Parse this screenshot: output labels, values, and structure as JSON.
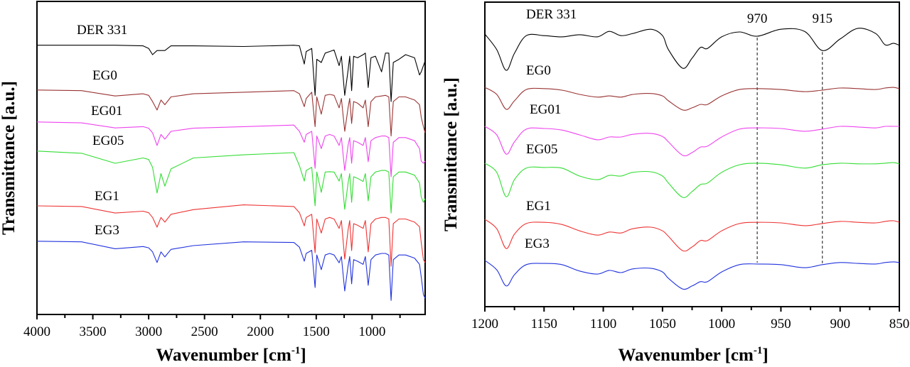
{
  "chart_data": [
    {
      "type": "line",
      "title": "",
      "xlabel": "Wavenumber [cm",
      "xlabel_sup": "-1",
      "xlabel_end": "]",
      "ylabel": "Transmittance [a.u.]",
      "xlim": [
        4000,
        525
      ],
      "ylim": [
        0,
        100
      ],
      "x_ticks": [
        4000,
        3500,
        3000,
        2500,
        2000,
        1500,
        1000
      ],
      "y_ticks_shown": false,
      "grid": false,
      "legend": "inline labels",
      "x": [
        4000,
        3600,
        3300,
        3050,
        3000,
        2965,
        2925,
        2890,
        2855,
        2800,
        2600,
        2150,
        1700,
        1650,
        1607,
        1590,
        1540,
        1510,
        1495,
        1455,
        1420,
        1380,
        1340,
        1295,
        1275,
        1245,
        1215,
        1200,
        1183,
        1165,
        1130,
        1080,
        1060,
        1035,
        1010,
        970,
        915,
        880,
        850,
        830,
        810,
        760,
        700,
        620,
        575,
        560,
        540,
        525
      ],
      "series": [
        {
          "name": "DER 331",
          "color": "#000000",
          "values": [
            86,
            86,
            86,
            85.8,
            85,
            83,
            84.3,
            84.3,
            84.3,
            85.8,
            85.8,
            85.6,
            86,
            85.8,
            80,
            84,
            85,
            70,
            81.5,
            80.5,
            83.5,
            84,
            84.5,
            79.5,
            82.5,
            70,
            78,
            82.5,
            71.5,
            82.5,
            82,
            83,
            83.5,
            72.5,
            82,
            82.5,
            77.5,
            83.5,
            83.5,
            68,
            80.5,
            81.5,
            83,
            82,
            76.5,
            77.5,
            79.5,
            81
          ]
        },
        {
          "name": "EG0",
          "color": "#993333",
          "values": [
            71.7,
            71.5,
            69.8,
            70.5,
            70,
            68,
            65.3,
            68.5,
            67,
            69.5,
            70.5,
            71,
            71.5,
            70.5,
            66.4,
            69,
            71,
            60,
            69.5,
            64,
            70,
            70.3,
            70,
            66,
            69,
            58.5,
            66,
            69,
            61,
            68,
            67.5,
            66,
            68.5,
            60,
            68,
            69.5,
            69.8,
            70,
            69.5,
            57,
            68,
            69.5,
            69.5,
            68.5,
            67,
            63,
            60,
            58
          ]
        },
        {
          "name": "EG01",
          "color": "#ee44ee",
          "values": [
            61.5,
            61.2,
            59.6,
            60,
            59.5,
            58,
            54,
            57.5,
            56,
            58.5,
            59.5,
            60,
            60.5,
            58.5,
            55,
            57.5,
            58.5,
            46.7,
            57,
            53,
            57,
            57.5,
            57,
            54,
            56.5,
            46,
            54,
            56.5,
            48.3,
            55.5,
            55,
            54,
            56.5,
            48.8,
            55.5,
            56.5,
            57,
            57,
            56.5,
            44,
            55,
            56.5,
            56.5,
            55.5,
            53,
            49,
            48.3,
            49
          ]
        },
        {
          "name": "EG05",
          "color": "#33dd33",
          "values": [
            52.2,
            51.5,
            48.3,
            50,
            49.5,
            47,
            38.8,
            45,
            41,
            46.5,
            50,
            51,
            51.7,
            47.5,
            42.6,
            46,
            47,
            34.7,
            45.5,
            39,
            45.5,
            45.6,
            45.5,
            42.6,
            45,
            33.6,
            42,
            45,
            35.8,
            44,
            43.5,
            42.5,
            45,
            36.3,
            44,
            45.5,
            46,
            46,
            45.5,
            32.4,
            44,
            45.5,
            45.5,
            44.5,
            42,
            37.5,
            35.8,
            37
          ]
        },
        {
          "name": "EG1",
          "color": "#ee3333",
          "values": [
            34.7,
            34.5,
            32.4,
            33,
            32.5,
            31,
            27.9,
            31,
            29.5,
            32,
            33.5,
            35,
            34.5,
            32.5,
            28.3,
            31,
            32,
            19.7,
            30.5,
            26,
            30.5,
            31,
            30.5,
            27.5,
            30,
            17.7,
            27,
            30,
            20.4,
            29,
            28.5,
            27.5,
            30,
            20,
            29,
            30.5,
            31,
            31,
            30.5,
            15.4,
            29,
            30.5,
            30.5,
            29.5,
            28,
            23,
            17.5,
            16.6
          ]
        },
        {
          "name": "EG3",
          "color": "#2233dd",
          "values": [
            23.4,
            23.2,
            21,
            21.7,
            21.3,
            20,
            16.6,
            20,
            18.4,
            20.8,
            22,
            23.2,
            23,
            21.5,
            17,
            19.5,
            20.5,
            8.6,
            19,
            14.3,
            19,
            19.5,
            19,
            16.5,
            18.5,
            7.5,
            15.5,
            18.5,
            9.8,
            17.5,
            17,
            16,
            18.5,
            9.3,
            17.5,
            19,
            19.5,
            19.5,
            19,
            4.5,
            17.5,
            19,
            19,
            18,
            16,
            12,
            6.3,
            5.2
          ]
        }
      ]
    },
    {
      "type": "line",
      "title": "",
      "xlabel": "Wavenumber [cm",
      "xlabel_sup": "-1",
      "xlabel_end": "]",
      "ylabel": "Transmittance [a.u.]",
      "xlim": [
        1200,
        850
      ],
      "ylim": [
        0,
        100
      ],
      "x_ticks": [
        1200,
        1150,
        1100,
        1050,
        1000,
        950,
        900,
        850
      ],
      "y_ticks_shown": false,
      "grid": false,
      "legend": "inline labels",
      "annotations": [
        {
          "label": "970",
          "x": 970,
          "style": "dashed vertical line"
        },
        {
          "label": "915",
          "x": 915,
          "style": "dashed vertical line"
        }
      ],
      "x": [
        1200,
        1190,
        1182,
        1175,
        1165,
        1150,
        1135,
        1120,
        1105,
        1095,
        1085,
        1075,
        1060,
        1050,
        1045,
        1033,
        1025,
        1018,
        1012,
        1000,
        985,
        970,
        950,
        930,
        915,
        900,
        885,
        870,
        862,
        855,
        850
      ],
      "series": [
        {
          "name": "DER 331",
          "color": "#000000",
          "values": [
            89.5,
            84.4,
            77.6,
            83.2,
            89,
            89,
            88.6,
            89.3,
            88.6,
            90.4,
            89,
            89.7,
            91.1,
            89,
            84.4,
            78.3,
            81.6,
            85.1,
            84.8,
            88.6,
            90.2,
            88.8,
            91.1,
            90.4,
            84.1,
            87.9,
            91.4,
            89.7,
            86,
            86.5,
            85.8
          ]
        },
        {
          "name": "EG0",
          "color": "#993333",
          "values": [
            72,
            69.7,
            64.8,
            67.6,
            71.3,
            71.6,
            71.1,
            69.7,
            68.8,
            69.2,
            68.8,
            69.7,
            70,
            69.2,
            67.6,
            64.6,
            65.3,
            66.4,
            66.4,
            69.2,
            71.3,
            71.6,
            71.3,
            70.6,
            71.1,
            71.8,
            71.6,
            71.3,
            71.8,
            72,
            71.6
          ]
        },
        {
          "name": "EG01",
          "color": "#ee44ee",
          "values": [
            59.2,
            56.4,
            50.1,
            54.1,
            58.3,
            58.5,
            58,
            56.4,
            54.8,
            55.7,
            55.7,
            56.6,
            56.9,
            55.9,
            54.1,
            49.7,
            50.6,
            52.4,
            52.7,
            55.7,
            58.3,
            58.7,
            58.5,
            57.6,
            58.3,
            59.2,
            59,
            58.7,
            59.2,
            59.2,
            59.2
          ]
        },
        {
          "name": "EG05",
          "color": "#33dd33",
          "values": [
            47.1,
            44.1,
            36.1,
            41.7,
            45.5,
            45.7,
            45.5,
            42.9,
            41.7,
            43.1,
            42.9,
            44.1,
            44.3,
            42.9,
            40.6,
            35.9,
            37.8,
            40.1,
            40.6,
            44.1,
            46.6,
            47.1,
            46.6,
            45.5,
            46.6,
            47.1,
            46.9,
            46.9,
            47.1,
            47.3,
            46.9
          ]
        },
        {
          "name": "EG1",
          "color": "#ee3333",
          "values": [
            28.7,
            25.6,
            19.1,
            23.8,
            27.3,
            27.7,
            27,
            24.9,
            23.5,
            24.5,
            24.2,
            25.6,
            26.1,
            24.9,
            23.1,
            18.4,
            19.6,
            21.7,
            21.7,
            24.9,
            27.3,
            27.7,
            27.5,
            26.6,
            27.3,
            28,
            27.7,
            27.5,
            28,
            28.2,
            27.7
          ]
        },
        {
          "name": "EG3",
          "color": "#2233dd",
          "values": [
            15.2,
            12.1,
            6.8,
            10.5,
            13.8,
            14.2,
            13.8,
            11.7,
            10.7,
            11.9,
            11.2,
            12.4,
            12.6,
            11.4,
            9.3,
            5.8,
            6.8,
            8.2,
            8.2,
            11.4,
            13.8,
            14,
            13.8,
            12.8,
            13.8,
            14.5,
            14.2,
            14,
            14.5,
            14.7,
            14.5
          ]
        }
      ]
    }
  ]
}
